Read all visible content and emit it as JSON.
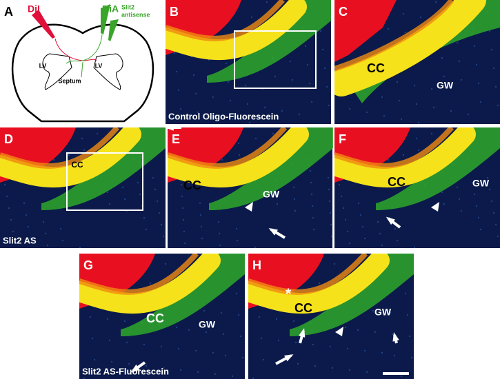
{
  "panels": [
    {
      "letter": "A",
      "labels": [
        "DiI",
        "DiA",
        "Slit2",
        "antisense",
        "LV",
        "LV",
        "Septum"
      ]
    },
    {
      "letter": "B",
      "caption": "Control Oligo-Fluorescein"
    },
    {
      "letter": "C",
      "labels": [
        "CC",
        "GW"
      ]
    },
    {
      "letter": "D",
      "labels": [
        "CC"
      ],
      "caption": "Slit2 AS"
    },
    {
      "letter": "E",
      "labels": [
        "CC",
        "GW"
      ]
    },
    {
      "letter": "F",
      "labels": [
        "CC",
        "GW"
      ]
    },
    {
      "letter": "G",
      "labels": [
        "CC",
        "GW"
      ],
      "caption": "Slit2 AS-Fluorescein"
    },
    {
      "letter": "H",
      "labels": [
        "*",
        "CC",
        "GW"
      ]
    }
  ]
}
